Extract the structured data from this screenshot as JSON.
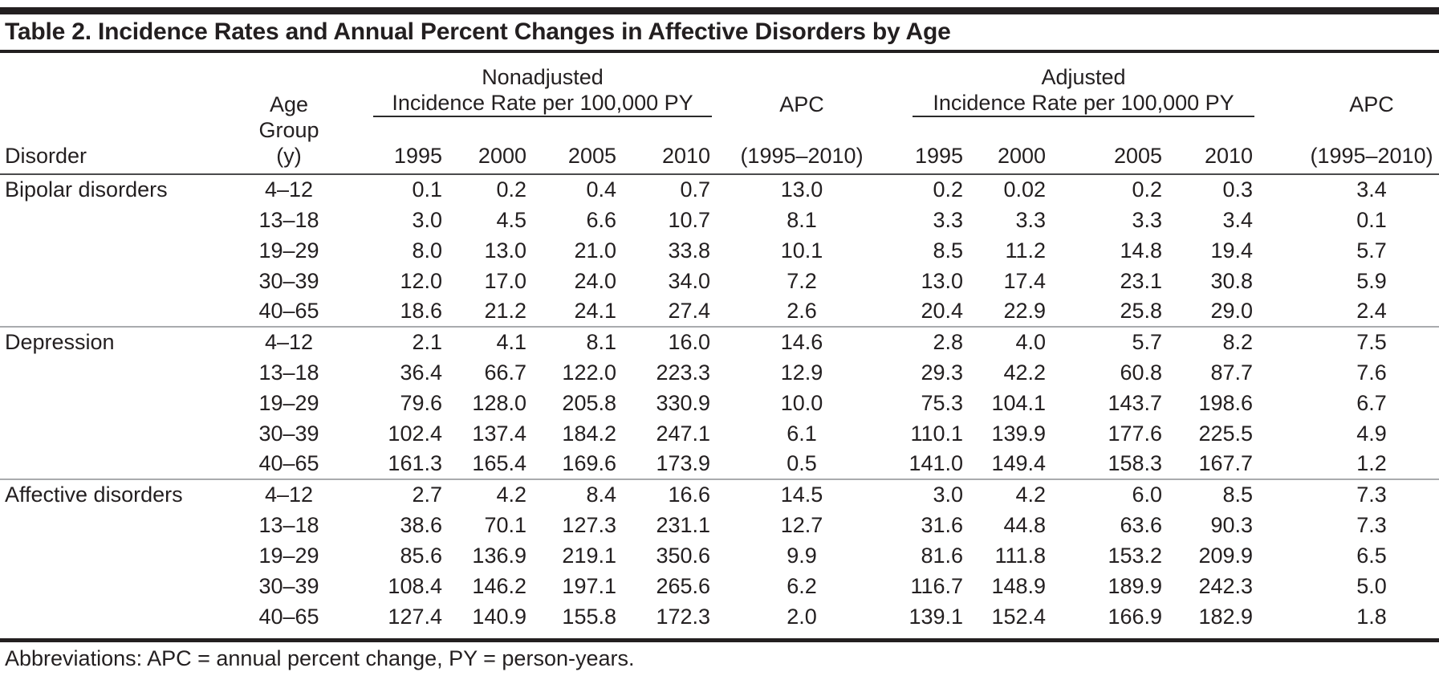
{
  "page": {
    "background": "#ffffff",
    "text_color": "#231f20",
    "thick_rule_color": "#231f20",
    "thin_rule_color": "#a9abae"
  },
  "table": {
    "title": "Table 2. Incidence Rates and Annual Percent Changes in Affective Disorders by Age",
    "header": {
      "disorder": "Disorder",
      "age_line1": "Age",
      "age_line2": "Group (y)",
      "nonadjusted": {
        "line1": "Nonadjusted",
        "line2": "Incidence Rate per 100,000 PY"
      },
      "adjusted": {
        "line1": "Adjusted",
        "line2": "Incidence Rate per 100,000 PY"
      },
      "years": [
        "1995",
        "2000",
        "2005",
        "2010"
      ],
      "apc_line1": "APC",
      "apc_line2": "(1995–2010)"
    },
    "groups": [
      {
        "disorder": "Bipolar disorders",
        "rows": [
          {
            "age": "4–12",
            "nonadjusted": [
              "0.1",
              "0.2",
              "0.4",
              "0.7"
            ],
            "apc_nonadjusted": "13.0",
            "adjusted": [
              "0.2",
              "0.02",
              "0.2",
              "0.3"
            ],
            "apc_adjusted": "3.4"
          },
          {
            "age": "13–18",
            "nonadjusted": [
              "3.0",
              "4.5",
              "6.6",
              "10.7"
            ],
            "apc_nonadjusted": "8.1",
            "adjusted": [
              "3.3",
              "3.3",
              "3.3",
              "3.4"
            ],
            "apc_adjusted": "0.1"
          },
          {
            "age": "19–29",
            "nonadjusted": [
              "8.0",
              "13.0",
              "21.0",
              "33.8"
            ],
            "apc_nonadjusted": "10.1",
            "adjusted": [
              "8.5",
              "11.2",
              "14.8",
              "19.4"
            ],
            "apc_adjusted": "5.7"
          },
          {
            "age": "30–39",
            "nonadjusted": [
              "12.0",
              "17.0",
              "24.0",
              "34.0"
            ],
            "apc_nonadjusted": "7.2",
            "adjusted": [
              "13.0",
              "17.4",
              "23.1",
              "30.8"
            ],
            "apc_adjusted": "5.9"
          },
          {
            "age": "40–65",
            "nonadjusted": [
              "18.6",
              "21.2",
              "24.1",
              "27.4"
            ],
            "apc_nonadjusted": "2.6",
            "adjusted": [
              "20.4",
              "22.9",
              "25.8",
              "29.0"
            ],
            "apc_adjusted": "2.4"
          }
        ]
      },
      {
        "disorder": "Depression",
        "rows": [
          {
            "age": "4–12",
            "nonadjusted": [
              "2.1",
              "4.1",
              "8.1",
              "16.0"
            ],
            "apc_nonadjusted": "14.6",
            "adjusted": [
              "2.8",
              "4.0",
              "5.7",
              "8.2"
            ],
            "apc_adjusted": "7.5"
          },
          {
            "age": "13–18",
            "nonadjusted": [
              "36.4",
              "66.7",
              "122.0",
              "223.3"
            ],
            "apc_nonadjusted": "12.9",
            "adjusted": [
              "29.3",
              "42.2",
              "60.8",
              "87.7"
            ],
            "apc_adjusted": "7.6"
          },
          {
            "age": "19–29",
            "nonadjusted": [
              "79.6",
              "128.0",
              "205.8",
              "330.9"
            ],
            "apc_nonadjusted": "10.0",
            "adjusted": [
              "75.3",
              "104.1",
              "143.7",
              "198.6"
            ],
            "apc_adjusted": "6.7"
          },
          {
            "age": "30–39",
            "nonadjusted": [
              "102.4",
              "137.4",
              "184.2",
              "247.1"
            ],
            "apc_nonadjusted": "6.1",
            "adjusted": [
              "110.1",
              "139.9",
              "177.6",
              "225.5"
            ],
            "apc_adjusted": "4.9"
          },
          {
            "age": "40–65",
            "nonadjusted": [
              "161.3",
              "165.4",
              "169.6",
              "173.9"
            ],
            "apc_nonadjusted": "0.5",
            "adjusted": [
              "141.0",
              "149.4",
              "158.3",
              "167.7"
            ],
            "apc_adjusted": "1.2"
          }
        ]
      },
      {
        "disorder": "Affective disorders",
        "rows": [
          {
            "age": "4–12",
            "nonadjusted": [
              "2.7",
              "4.2",
              "8.4",
              "16.6"
            ],
            "apc_nonadjusted": "14.5",
            "adjusted": [
              "3.0",
              "4.2",
              "6.0",
              "8.5"
            ],
            "apc_adjusted": "7.3"
          },
          {
            "age": "13–18",
            "nonadjusted": [
              "38.6",
              "70.1",
              "127.3",
              "231.1"
            ],
            "apc_nonadjusted": "12.7",
            "adjusted": [
              "31.6",
              "44.8",
              "63.6",
              "90.3"
            ],
            "apc_adjusted": "7.3"
          },
          {
            "age": "19–29",
            "nonadjusted": [
              "85.6",
              "136.9",
              "219.1",
              "350.6"
            ],
            "apc_nonadjusted": "9.9",
            "adjusted": [
              "81.6",
              "111.8",
              "153.2",
              "209.9"
            ],
            "apc_adjusted": "6.5"
          },
          {
            "age": "30–39",
            "nonadjusted": [
              "108.4",
              "146.2",
              "197.1",
              "265.6"
            ],
            "apc_nonadjusted": "6.2",
            "adjusted": [
              "116.7",
              "148.9",
              "189.9",
              "242.3"
            ],
            "apc_adjusted": "5.0"
          },
          {
            "age": "40–65",
            "nonadjusted": [
              "127.4",
              "140.9",
              "155.8",
              "172.3"
            ],
            "apc_nonadjusted": "2.0",
            "adjusted": [
              "139.1",
              "152.4",
              "166.9",
              "182.9"
            ],
            "apc_adjusted": "1.8"
          }
        ]
      }
    ],
    "footnote": "Abbreviations: APC = annual percent change, PY = person-years."
  }
}
